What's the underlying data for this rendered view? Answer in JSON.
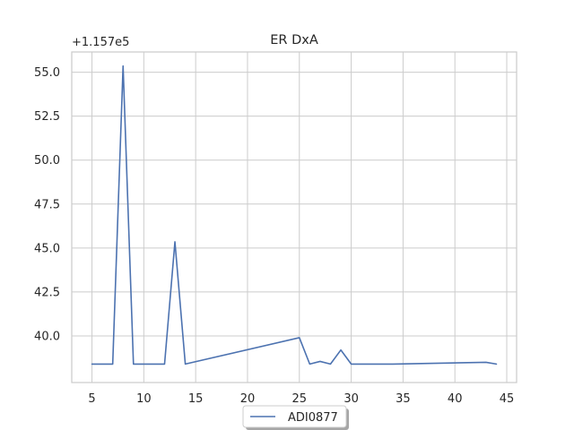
{
  "chart_data": {
    "type": "line",
    "title": "ER DxA",
    "xlabel": "",
    "ylabel": "",
    "y_offset_label": "+1.157e5",
    "xlim": [
      3.05,
      45.95
    ],
    "ylim": [
      37.35,
      56.15
    ],
    "x_ticks": [
      5,
      10,
      15,
      20,
      25,
      30,
      35,
      40,
      45
    ],
    "x_tick_labels": [
      "5",
      "10",
      "15",
      "20",
      "25",
      "30",
      "35",
      "40",
      "45"
    ],
    "y_ticks": [
      40.0,
      42.5,
      45.0,
      47.5,
      50.0,
      52.5,
      55.0
    ],
    "y_tick_labels": [
      "40.0",
      "42.5",
      "45.0",
      "47.5",
      "50.0",
      "52.5",
      "55.0"
    ],
    "grid": true,
    "legend_placement": "bottom-center, outside below axes",
    "series": [
      {
        "name": "ADI0877",
        "color": "#4c72b0",
        "x": [
          5,
          7,
          8,
          9,
          12,
          13,
          14,
          25,
          26,
          27,
          28,
          29,
          30,
          34,
          43,
          44
        ],
        "y": [
          38.4,
          38.4,
          55.35,
          38.4,
          38.4,
          45.35,
          38.4,
          39.9,
          38.4,
          38.55,
          38.4,
          39.2,
          38.4,
          38.4,
          38.5,
          38.4
        ]
      }
    ]
  },
  "colors": {
    "line": "#4c72b0",
    "grid": "#cccccc",
    "axes_edge": "#cccccc",
    "text": "#262626"
  }
}
